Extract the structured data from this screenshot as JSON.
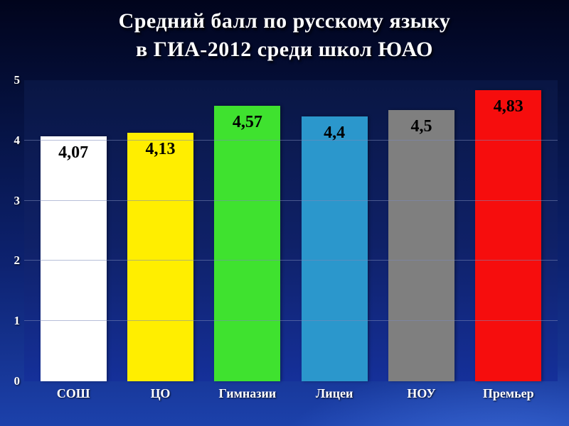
{
  "title": {
    "line1": "Средний балл по русскому языку",
    "line2": "в ГИА-2012 среди школ ЮАО"
  },
  "chart_data": {
    "type": "bar",
    "title": "Средний балл по русскому языку в ГИА-2012 среди школ ЮАО",
    "categories": [
      "СОШ",
      "ЦО",
      "Гимназии",
      "Лицеи",
      "НОУ",
      "Премьер"
    ],
    "values": [
      4.07,
      4.13,
      4.57,
      4.4,
      4.5,
      4.83
    ],
    "value_labels": [
      "4,07",
      "4,13",
      "4,57",
      "4,4",
      "4,5",
      "4,83"
    ],
    "bar_colors": [
      "#ffffff",
      "#ffee00",
      "#3fe22f",
      "#2b97cc",
      "#7f7f7f",
      "#f60d0d"
    ],
    "y_ticks": [
      "0",
      "1",
      "2",
      "3",
      "4",
      "5"
    ],
    "ylim": [
      0,
      5
    ],
    "grid": true,
    "legend": false,
    "xlabel": "",
    "ylabel": ""
  },
  "colors": {
    "background_top": "#01041c",
    "background_bottom": "#1c41ab",
    "plot_background": "#0f2168",
    "gridline": "#7c89b8",
    "axis_label": "#ffffff",
    "value_label": "#000000",
    "title_text": "#ffffff"
  }
}
